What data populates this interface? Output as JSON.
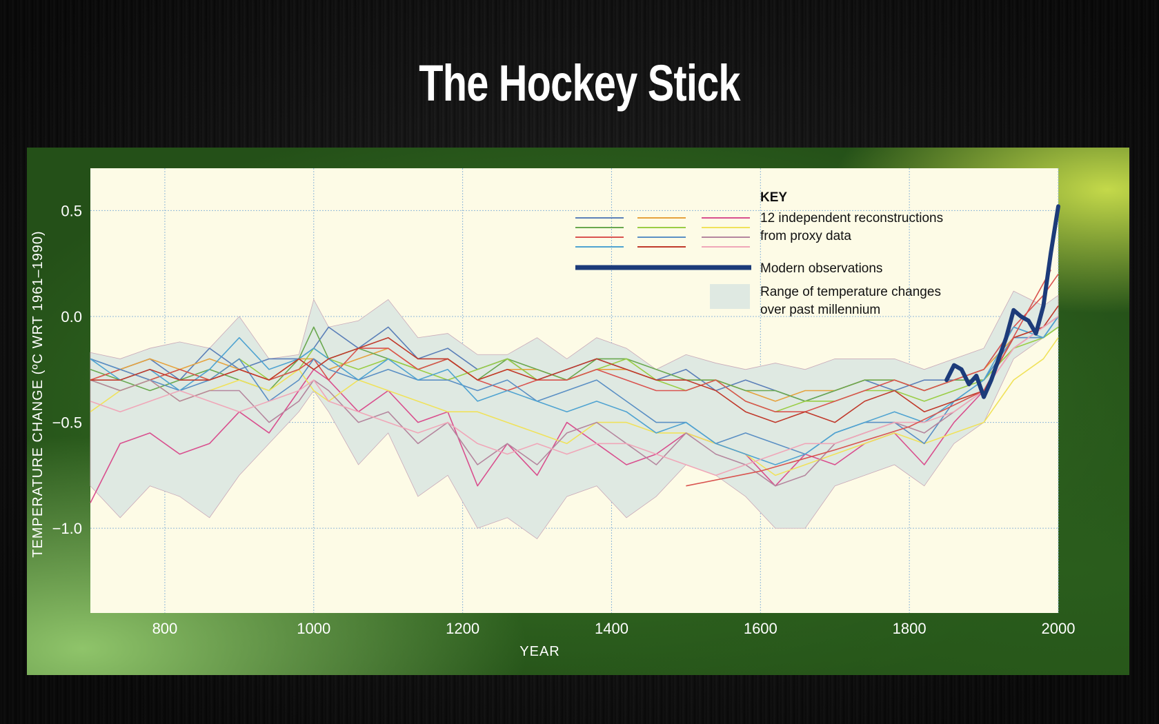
{
  "slide": {
    "title": "The Hockey Stick"
  },
  "chart_data": {
    "type": "line",
    "title": "",
    "xlabel": "YEAR",
    "ylabel": "TEMPERATURE CHANGE (ºC WRT 1961–1990)",
    "xlim": [
      700,
      2000
    ],
    "ylim": [
      -1.4,
      0.7
    ],
    "x_ticks": [
      800,
      1000,
      1200,
      1400,
      1600,
      1800,
      2000
    ],
    "y_ticks": [
      0.5,
      0.0,
      -0.5,
      -1.0
    ],
    "x_tick_labels": [
      "800",
      "1000",
      "1200",
      "1400",
      "1600",
      "1800",
      "2000"
    ],
    "y_tick_labels": [
      "0.5",
      "0.0",
      "−0.5",
      "−1.0"
    ],
    "grid": true,
    "legend": {
      "placement": "top-right",
      "heading": "KEY",
      "reconstructions_label_line1": "12 independent reconstructions",
      "reconstructions_label_line2": "from proxy data",
      "observations_label": "Modern observations",
      "range_label_line1": "Range of temperature changes",
      "range_label_line2": "over past millennium"
    },
    "colors": {
      "plot_background": "#fdfbe6",
      "grid": "#8fb7d9",
      "range_band": "#dfe9e2",
      "observations": "#1c3b7a",
      "reconstructions": [
        "#5b7fb8",
        "#e6a23c",
        "#d94f8e",
        "#6aa84f",
        "#9acd45",
        "#f0e25a",
        "#d9534f",
        "#5a8fc4",
        "#b5869e",
        "#4fa3d1",
        "#c0392b",
        "#f0a6b8"
      ]
    },
    "range_band": {
      "x": [
        700,
        740,
        780,
        820,
        860,
        900,
        940,
        980,
        1000,
        1020,
        1060,
        1100,
        1140,
        1180,
        1220,
        1260,
        1300,
        1340,
        1380,
        1420,
        1460,
        1500,
        1540,
        1580,
        1620,
        1660,
        1700,
        1740,
        1780,
        1820,
        1860,
        1900,
        1940,
        1980,
        2000
      ],
      "upper": [
        -0.17,
        -0.2,
        -0.15,
        -0.12,
        -0.15,
        0.0,
        -0.2,
        -0.18,
        0.08,
        -0.05,
        -0.02,
        0.08,
        -0.1,
        -0.08,
        -0.18,
        -0.18,
        -0.1,
        -0.2,
        -0.1,
        -0.15,
        -0.25,
        -0.18,
        -0.22,
        -0.25,
        -0.22,
        -0.25,
        -0.2,
        -0.2,
        -0.2,
        -0.25,
        -0.2,
        -0.15,
        0.12,
        0.05,
        0.1
      ],
      "lower": [
        -0.8,
        -0.95,
        -0.8,
        -0.85,
        -0.95,
        -0.75,
        -0.6,
        -0.45,
        -0.35,
        -0.45,
        -0.7,
        -0.55,
        -0.85,
        -0.75,
        -1.0,
        -0.95,
        -1.05,
        -0.85,
        -0.8,
        -0.95,
        -0.85,
        -0.7,
        -0.75,
        -0.85,
        -1.0,
        -1.0,
        -0.8,
        -0.75,
        -0.7,
        -0.8,
        -0.6,
        -0.5,
        -0.2,
        -0.1,
        -0.05
      ]
    },
    "series": [
      {
        "values": [
          -0.2,
          -0.25,
          -0.2,
          -0.3,
          -0.15,
          -0.25,
          -0.2,
          -0.2,
          -0.15,
          -0.05,
          -0.15,
          -0.05,
          -0.2,
          -0.15,
          -0.25,
          -0.2,
          -0.3,
          -0.25,
          -0.2,
          -0.25,
          -0.3,
          -0.25,
          -0.35,
          -0.3,
          -0.35,
          -0.4,
          -0.35,
          -0.3,
          -0.35,
          -0.3,
          -0.3,
          -0.25,
          -0.05,
          -0.1,
          0.0
        ]
      },
      {
        "values": [
          -0.3,
          -0.25,
          -0.2,
          -0.25,
          -0.2,
          -0.25,
          -0.3,
          -0.2,
          -0.2,
          -0.25,
          -0.2,
          -0.15,
          -0.25,
          -0.2,
          -0.3,
          -0.25,
          -0.25,
          -0.3,
          -0.25,
          -0.25,
          -0.3,
          -0.3,
          -0.3,
          -0.35,
          -0.4,
          -0.35,
          -0.35,
          -0.3,
          -0.3,
          -0.35,
          -0.3,
          -0.25,
          -0.1,
          -0.05,
          0.0
        ]
      },
      {
        "values": [
          -0.88,
          -0.6,
          -0.55,
          -0.65,
          -0.6,
          -0.45,
          -0.55,
          -0.35,
          -0.25,
          -0.3,
          -0.45,
          -0.35,
          -0.5,
          -0.45,
          -0.8,
          -0.6,
          -0.75,
          -0.5,
          -0.6,
          -0.7,
          -0.65,
          -0.55,
          -0.6,
          -0.65,
          -0.8,
          -0.65,
          -0.7,
          -0.6,
          -0.55,
          -0.7,
          -0.5,
          -0.35,
          -0.15,
          -0.05,
          0.0
        ]
      },
      {
        "values": [
          -0.25,
          -0.3,
          -0.35,
          -0.3,
          -0.25,
          -0.3,
          -0.35,
          -0.2,
          -0.05,
          -0.2,
          -0.15,
          -0.2,
          -0.25,
          -0.2,
          -0.3,
          -0.2,
          -0.25,
          -0.3,
          -0.2,
          -0.2,
          -0.25,
          -0.3,
          -0.3,
          -0.35,
          -0.35,
          -0.4,
          -0.35,
          -0.3,
          -0.3,
          -0.35,
          -0.3,
          -0.3,
          -0.1,
          -0.1,
          -0.05
        ]
      },
      {
        "values": [
          -0.3,
          -0.35,
          -0.3,
          -0.25,
          -0.3,
          -0.2,
          -0.3,
          -0.25,
          -0.15,
          -0.2,
          -0.25,
          -0.2,
          -0.25,
          -0.3,
          -0.25,
          -0.2,
          -0.3,
          -0.3,
          -0.25,
          -0.2,
          -0.3,
          -0.35,
          -0.3,
          -0.4,
          -0.45,
          -0.4,
          -0.4,
          -0.35,
          -0.35,
          -0.4,
          -0.35,
          -0.3,
          -0.15,
          -0.1,
          -0.05
        ]
      },
      {
        "values": [
          -0.45,
          -0.35,
          -0.3,
          -0.4,
          -0.35,
          -0.3,
          -0.35,
          -0.25,
          -0.35,
          -0.4,
          -0.3,
          -0.35,
          -0.4,
          -0.45,
          -0.45,
          -0.5,
          -0.55,
          -0.6,
          -0.5,
          -0.5,
          -0.55,
          -0.55,
          -0.6,
          -0.65,
          -0.75,
          -0.7,
          -0.65,
          -0.6,
          -0.55,
          -0.6,
          -0.55,
          -0.5,
          -0.3,
          -0.2,
          -0.1
        ]
      },
      {
        "values": [
          -0.3,
          -0.25,
          -0.3,
          -0.25,
          -0.3,
          -0.25,
          -0.3,
          -0.25,
          -0.2,
          -0.3,
          -0.15,
          -0.15,
          -0.25,
          -0.2,
          -0.3,
          -0.35,
          -0.3,
          -0.3,
          -0.25,
          -0.3,
          -0.35,
          -0.35,
          -0.3,
          -0.4,
          -0.45,
          -0.45,
          -0.4,
          -0.35,
          -0.3,
          -0.35,
          -0.3,
          -0.25,
          -0.05,
          0.1,
          0.2
        ]
      },
      {
        "values": [
          -0.2,
          -0.25,
          -0.3,
          -0.35,
          -0.3,
          -0.2,
          -0.4,
          -0.3,
          -0.2,
          -0.25,
          -0.3,
          -0.25,
          -0.3,
          -0.3,
          -0.35,
          -0.3,
          -0.4,
          -0.35,
          -0.3,
          -0.4,
          -0.5,
          -0.5,
          -0.6,
          -0.55,
          -0.6,
          -0.65,
          -0.55,
          -0.5,
          -0.5,
          -0.6,
          -0.4,
          -0.3,
          -0.1,
          -0.1,
          0.0
        ]
      },
      {
        "values": [
          -0.3,
          -0.35,
          -0.3,
          -0.4,
          -0.35,
          -0.35,
          -0.5,
          -0.4,
          -0.3,
          -0.35,
          -0.5,
          -0.45,
          -0.6,
          -0.5,
          -0.7,
          -0.6,
          -0.7,
          -0.55,
          -0.5,
          -0.6,
          -0.7,
          -0.55,
          -0.65,
          -0.7,
          -0.8,
          -0.75,
          -0.6,
          -0.55,
          -0.5,
          -0.55,
          -0.45,
          -0.35,
          -0.1,
          -0.05,
          0.0
        ]
      },
      {
        "values": [
          -0.2,
          -0.3,
          -0.25,
          -0.35,
          -0.25,
          -0.1,
          -0.25,
          -0.2,
          -0.15,
          -0.2,
          -0.3,
          -0.2,
          -0.3,
          -0.25,
          -0.4,
          -0.35,
          -0.4,
          -0.45,
          -0.4,
          -0.45,
          -0.55,
          -0.5,
          -0.6,
          -0.65,
          -0.7,
          -0.65,
          -0.55,
          -0.5,
          -0.45,
          -0.5,
          -0.4,
          -0.3,
          -0.05,
          -0.1,
          0.0
        ]
      },
      {
        "values": [
          -0.3,
          -0.3,
          -0.25,
          -0.3,
          -0.3,
          -0.25,
          -0.3,
          -0.2,
          -0.25,
          -0.2,
          -0.15,
          -0.1,
          -0.2,
          -0.2,
          -0.3,
          -0.25,
          -0.3,
          -0.25,
          -0.2,
          -0.25,
          -0.3,
          -0.3,
          -0.35,
          -0.45,
          -0.5,
          -0.45,
          -0.5,
          -0.4,
          -0.35,
          -0.45,
          -0.4,
          -0.35,
          -0.1,
          -0.05,
          0.05
        ]
      },
      {
        "values": [
          -0.4,
          -0.45,
          -0.4,
          -0.35,
          -0.4,
          -0.45,
          -0.4,
          -0.35,
          -0.3,
          -0.4,
          -0.45,
          -0.5,
          -0.55,
          -0.5,
          -0.6,
          -0.65,
          -0.6,
          -0.65,
          -0.6,
          -0.6,
          -0.65,
          -0.7,
          -0.75,
          -0.7,
          -0.65,
          -0.6,
          -0.6,
          -0.55,
          -0.5,
          -0.5,
          -0.45,
          -0.35,
          -0.15,
          -0.05,
          0.0
        ]
      }
    ],
    "observations": {
      "x": [
        1850,
        1860,
        1870,
        1880,
        1890,
        1900,
        1910,
        1920,
        1930,
        1940,
        1950,
        1960,
        1970,
        1980,
        1990,
        2000
      ],
      "y": [
        -0.3,
        -0.23,
        -0.25,
        -0.32,
        -0.28,
        -0.38,
        -0.3,
        -0.2,
        -0.1,
        0.03,
        0.0,
        -0.02,
        -0.08,
        0.05,
        0.3,
        0.52
      ]
    },
    "trend_line": {
      "x": [
        1500,
        1600,
        1700,
        1800,
        1900,
        1990
      ],
      "y": [
        -0.8,
        -0.73,
        -0.63,
        -0.52,
        -0.35,
        0.22
      ]
    }
  }
}
